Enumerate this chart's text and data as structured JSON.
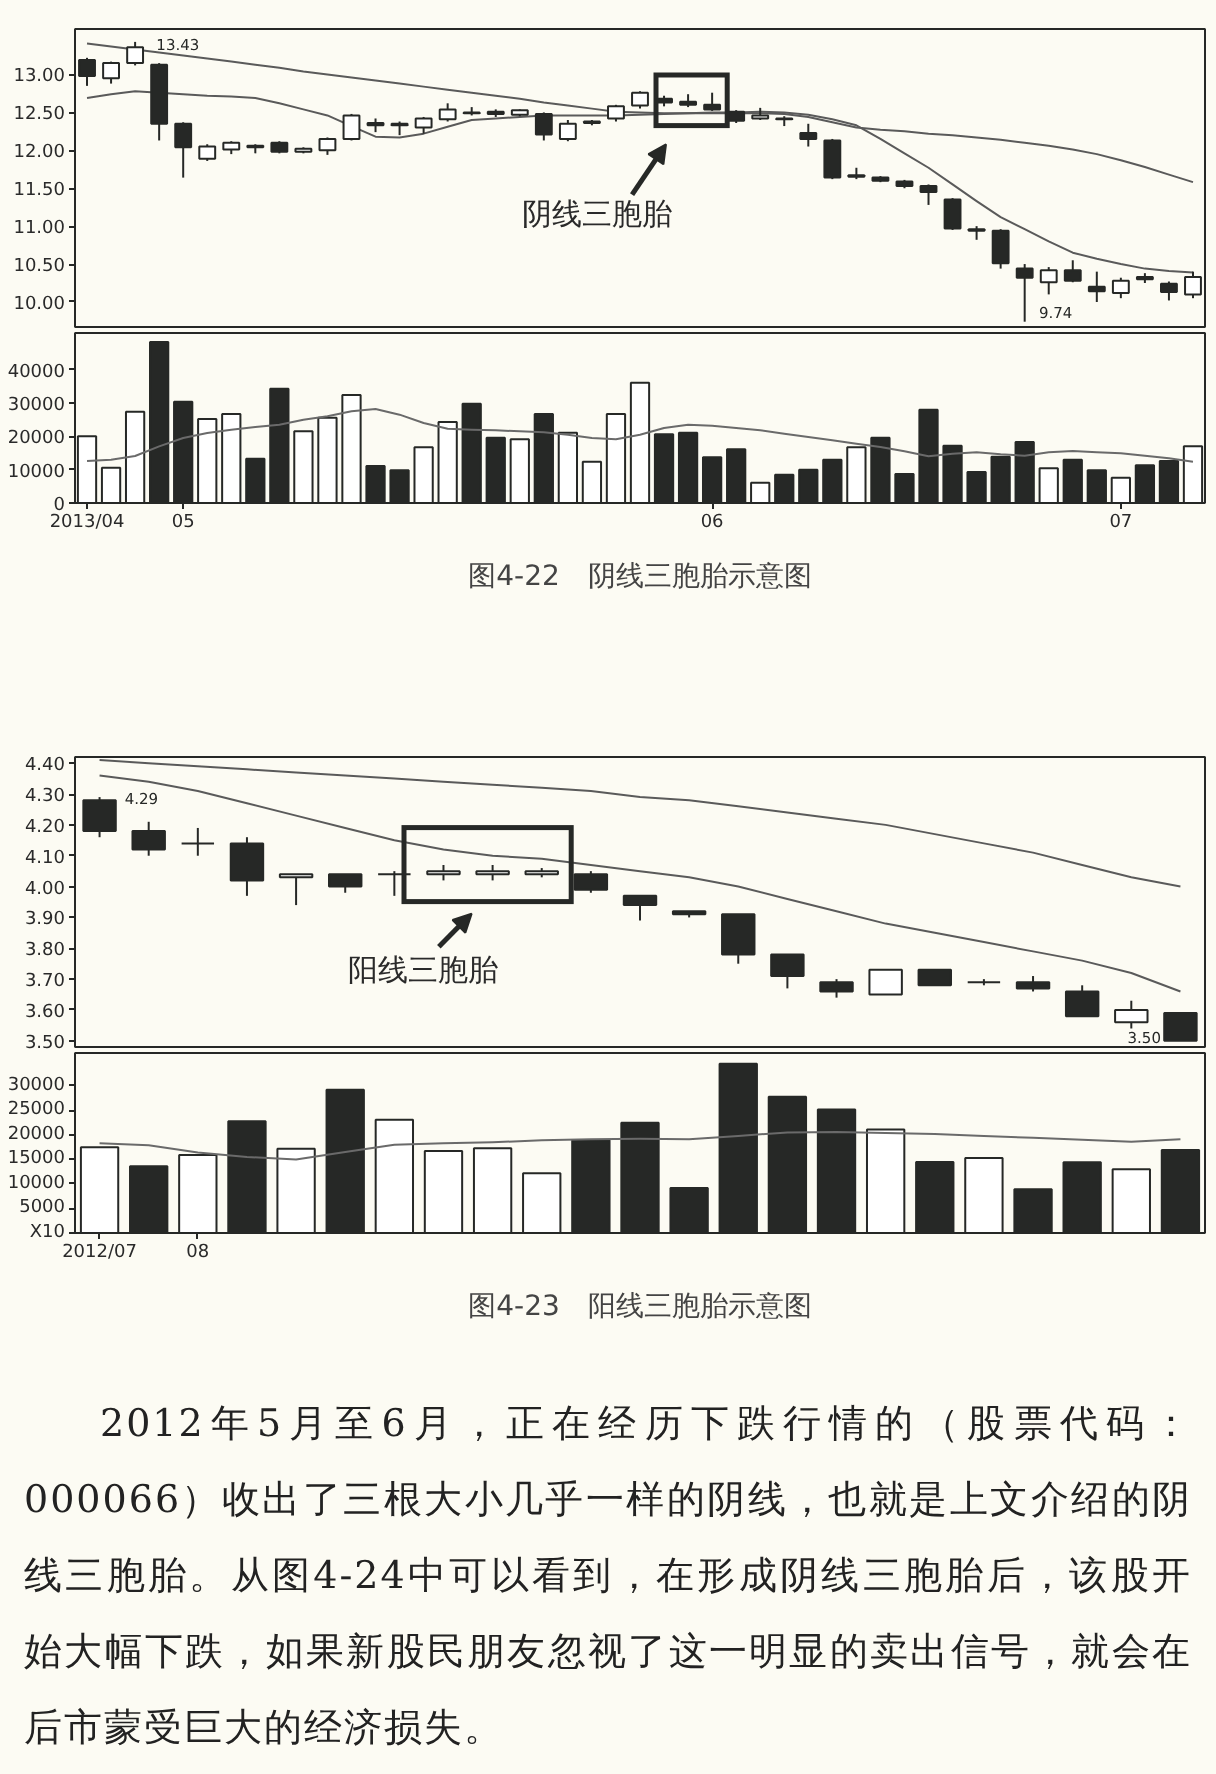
{
  "chart_data": [
    {
      "type": "candlestick",
      "color": "#262826",
      "categories": [
        "2013/04",
        null,
        null,
        null,
        "05",
        null,
        null,
        null,
        null,
        null,
        null,
        null,
        null,
        null,
        null,
        null,
        null,
        null,
        null,
        null,
        null,
        null,
        null,
        null,
        null,
        null,
        "06",
        null,
        null,
        null,
        null,
        null,
        null,
        null,
        null,
        null,
        null,
        null,
        null,
        null,
        null,
        null,
        null,
        "07",
        null,
        null,
        null
      ],
      "ohlc": [
        [
          13.19,
          13.22,
          12.85,
          12.98
        ],
        [
          12.95,
          13.17,
          12.88,
          13.15
        ],
        [
          13.15,
          13.43,
          13.12,
          13.36
        ],
        [
          13.13,
          13.15,
          12.13,
          12.35
        ],
        [
          12.35,
          12.37,
          11.64,
          12.04
        ],
        [
          11.89,
          12.08,
          11.86,
          12.05
        ],
        [
          12.01,
          12.12,
          11.95,
          12.1
        ],
        [
          12.06,
          12.08,
          11.96,
          12.04
        ],
        [
          12.1,
          12.12,
          11.96,
          11.98
        ],
        [
          11.98,
          12.04,
          11.96,
          12.02
        ],
        [
          12.0,
          12.17,
          11.94,
          12.15
        ],
        [
          12.15,
          12.48,
          12.13,
          12.46
        ],
        [
          12.36,
          12.42,
          12.24,
          12.33
        ],
        [
          12.35,
          12.38,
          12.2,
          12.33
        ],
        [
          12.3,
          12.44,
          12.22,
          12.42
        ],
        [
          12.41,
          12.62,
          12.38,
          12.54
        ],
        [
          12.5,
          12.57,
          12.46,
          12.49
        ],
        [
          12.51,
          12.54,
          12.44,
          12.48
        ],
        [
          12.47,
          12.54,
          12.45,
          12.53
        ],
        [
          12.48,
          12.5,
          12.13,
          12.21
        ],
        [
          12.15,
          12.4,
          12.12,
          12.35
        ],
        [
          12.36,
          12.4,
          12.33,
          12.38
        ],
        [
          12.42,
          12.6,
          12.38,
          12.58
        ],
        [
          12.59,
          12.78,
          12.55,
          12.76
        ],
        [
          12.68,
          12.72,
          12.58,
          12.63
        ],
        [
          12.64,
          12.74,
          12.57,
          12.6
        ],
        [
          12.6,
          12.76,
          12.52,
          12.54
        ],
        [
          12.51,
          12.53,
          12.36,
          12.39
        ],
        [
          12.42,
          12.56,
          12.4,
          12.46
        ],
        [
          12.42,
          12.45,
          12.32,
          12.41
        ],
        [
          12.23,
          12.35,
          12.05,
          12.15
        ],
        [
          12.13,
          12.15,
          11.62,
          11.64
        ],
        [
          11.65,
          11.77,
          11.62,
          11.67
        ],
        [
          11.64,
          11.66,
          11.58,
          11.6
        ],
        [
          11.59,
          11.61,
          11.5,
          11.53
        ],
        [
          11.53,
          11.55,
          11.28,
          11.45
        ],
        [
          11.35,
          11.37,
          10.95,
          10.97
        ],
        [
          10.96,
          11.0,
          10.82,
          10.94
        ],
        [
          10.94,
          10.96,
          10.44,
          10.51
        ],
        [
          10.44,
          10.5,
          9.74,
          10.32
        ],
        [
          10.26,
          10.46,
          10.1,
          10.42
        ],
        [
          10.42,
          10.55,
          10.26,
          10.28
        ],
        [
          10.2,
          10.4,
          10.0,
          10.14
        ],
        [
          10.12,
          10.32,
          10.05,
          10.28
        ],
        [
          10.33,
          10.38,
          10.25,
          10.3
        ],
        [
          10.24,
          10.27,
          10.02,
          10.13
        ],
        [
          10.1,
          10.4,
          10.05,
          10.33
        ]
      ],
      "series": [
        {
          "type": "line",
          "color": "#5a5a5a",
          "values": [
            13.41,
            13.37,
            13.33,
            13.29,
            13.25,
            13.21,
            13.17,
            13.13,
            13.09,
            13.04,
            13.0,
            12.96,
            12.92,
            12.88,
            12.84,
            12.8,
            12.76,
            12.72,
            12.68,
            12.63,
            12.59,
            12.55,
            12.51,
            12.5,
            12.49,
            12.49,
            12.49,
            12.49,
            12.49,
            12.48,
            12.44,
            12.37,
            12.3,
            12.27,
            12.25,
            12.22,
            12.2,
            12.17,
            12.14,
            12.1,
            12.06,
            12.01,
            11.95,
            11.87,
            11.78,
            11.68,
            11.58
          ]
        },
        {
          "type": "line",
          "color": "#5a5a5a",
          "values": [
            12.69,
            12.74,
            12.78,
            12.76,
            12.74,
            12.72,
            12.71,
            12.69,
            12.62,
            12.54,
            12.46,
            12.32,
            12.18,
            12.17,
            12.22,
            12.31,
            12.4,
            12.42,
            12.44,
            12.46,
            12.46,
            12.46,
            12.46,
            12.47,
            12.48,
            12.49,
            12.5,
            12.5,
            12.51,
            12.5,
            12.47,
            12.41,
            12.33,
            12.15,
            11.96,
            11.77,
            11.55,
            11.33,
            11.12,
            10.96,
            10.8,
            10.65,
            10.57,
            10.5,
            10.44,
            10.41,
            10.39
          ]
        }
      ],
      "ylim": [
        9.67,
        13.6
      ],
      "yticks": [
        {
          "value": 10,
          "label": "10.00"
        },
        {
          "value": 10.5,
          "label": "10.50"
        },
        {
          "value": 11,
          "label": "11.00"
        },
        {
          "value": 11.5,
          "label": "11.50"
        },
        {
          "value": 12,
          "label": "12.00"
        },
        {
          "value": 12.5,
          "label": "12.50"
        },
        {
          "value": 13,
          "label": "13.00"
        }
      ],
      "tick_labels": "y",
      "annotations": [
        "13.43",
        "9.74",
        "阴线三胞胎"
      ]
    },
    {
      "type": "bar",
      "title": "图4-22　阴线三胞胎示意图",
      "categories": [
        "2013/04",
        null,
        null,
        null,
        "05",
        null,
        null,
        null,
        null,
        null,
        null,
        null,
        null,
        null,
        null,
        null,
        null,
        null,
        null,
        null,
        null,
        null,
        null,
        null,
        null,
        null,
        "06",
        null,
        null,
        null,
        null,
        null,
        null,
        null,
        null,
        null,
        null,
        null,
        null,
        null,
        null,
        null,
        null,
        "07",
        null,
        null,
        null
      ],
      "series": [
        {
          "type": "bar",
          "values": [
            20000,
            10600,
            27400,
            48300,
            30400,
            25200,
            26700,
            13300,
            34300,
            21500,
            25600,
            32400,
            11100,
            9800,
            16700,
            24300,
            29800,
            19600,
            19100,
            26700,
            21100,
            12400,
            26700,
            36100,
            20600,
            21100,
            13700,
            16100,
            6100,
            8500,
            10000,
            13000,
            16700,
            19600,
            8700,
            28000,
            17200,
            9300,
            13900,
            18300,
            10400,
            13000,
            9800,
            7600,
            11300,
            12600,
            17000
          ],
          "colors": [
            "#ffffff",
            "#ffffff",
            "#ffffff",
            "#262826",
            "#262826",
            "#ffffff",
            "#ffffff",
            "#262826",
            "#262826",
            "#ffffff",
            "#ffffff",
            "#ffffff",
            "#262826",
            "#262826",
            "#ffffff",
            "#ffffff",
            "#262826",
            "#262826",
            "#ffffff",
            "#262826",
            "#ffffff",
            "#ffffff",
            "#ffffff",
            "#ffffff",
            "#262826",
            "#262826",
            "#262826",
            "#262826",
            "#ffffff",
            "#262826",
            "#262826",
            "#262826",
            "#ffffff",
            "#262826",
            "#262826",
            "#262826",
            "#262826",
            "#262826",
            "#262826",
            "#262826",
            "#ffffff",
            "#262826",
            "#262826",
            "#ffffff",
            "#262826",
            "#262826",
            "#ffffff"
          ]
        },
        {
          "type": "line",
          "color": "#6a6a6a",
          "values": [
            12600,
            13000,
            14100,
            17000,
            19500,
            21000,
            22000,
            22800,
            23500,
            25000,
            26000,
            27500,
            28200,
            26500,
            24000,
            22300,
            22000,
            21800,
            21500,
            21200,
            20500,
            19500,
            19100,
            20500,
            22500,
            23500,
            23200,
            22500,
            21800,
            20800,
            19800,
            18800,
            17800,
            16800,
            15500,
            14000,
            14800,
            15200,
            14600,
            14200,
            15200,
            15600,
            15200,
            14900,
            14200,
            13400,
            12400
          ]
        }
      ],
      "ylim": [
        0,
        51000
      ],
      "yticks": [
        0,
        10000,
        20000,
        30000,
        40000
      ]
    },
    {
      "type": "candlestick",
      "color": "#262826",
      "categories": [
        "2012/07",
        null,
        "08",
        null,
        null,
        null,
        null,
        null,
        null,
        null,
        null,
        null,
        null,
        null,
        null,
        null,
        null,
        null,
        null,
        null,
        null,
        null,
        null
      ],
      "ohlc": [
        [
          4.28,
          4.29,
          4.16,
          4.18
        ],
        [
          4.18,
          4.21,
          4.1,
          4.12
        ],
        [
          4.14,
          4.19,
          4.1,
          4.14
        ],
        [
          4.14,
          4.16,
          3.97,
          4.02
        ],
        [
          4.03,
          4.04,
          3.94,
          4.04
        ],
        [
          4.04,
          4.04,
          3.98,
          4.0
        ],
        [
          4.04,
          4.05,
          3.97,
          4.04
        ],
        [
          4.04,
          4.07,
          4.02,
          4.05
        ],
        [
          4.04,
          4.07,
          4.02,
          4.05
        ],
        [
          4.04,
          4.06,
          4.03,
          4.05
        ],
        [
          4.04,
          4.05,
          3.98,
          3.99
        ],
        [
          3.97,
          3.97,
          3.89,
          3.94
        ],
        [
          3.92,
          3.92,
          3.9,
          3.91
        ],
        [
          3.91,
          3.91,
          3.75,
          3.78
        ],
        [
          3.78,
          3.78,
          3.67,
          3.71
        ],
        [
          3.69,
          3.7,
          3.64,
          3.66
        ],
        [
          3.65,
          3.73,
          3.65,
          3.73
        ],
        [
          3.73,
          3.73,
          3.68,
          3.68
        ],
        [
          3.69,
          3.7,
          3.68,
          3.69
        ],
        [
          3.69,
          3.71,
          3.66,
          3.67
        ],
        [
          3.66,
          3.68,
          3.58,
          3.58
        ],
        [
          3.56,
          3.63,
          3.54,
          3.6
        ],
        [
          3.59,
          3.59,
          3.5,
          3.5
        ]
      ],
      "series": [
        {
          "type": "line",
          "color": "#5a5a5a",
          "values": [
            4.41,
            4.4,
            4.39,
            4.38,
            4.37,
            4.36,
            4.35,
            4.34,
            4.33,
            4.32,
            4.31,
            4.29,
            4.28,
            4.26,
            4.24,
            4.22,
            4.2,
            4.17,
            4.14,
            4.11,
            4.07,
            4.03,
            4.0
          ]
        },
        {
          "type": "line",
          "color": "#5a5a5a",
          "values": [
            4.36,
            4.34,
            4.31,
            4.27,
            4.23,
            4.19,
            4.15,
            4.12,
            4.1,
            4.09,
            4.07,
            4.05,
            4.03,
            4.0,
            3.96,
            3.92,
            3.88,
            3.85,
            3.82,
            3.79,
            3.76,
            3.72,
            3.66
          ]
        }
      ],
      "ylim": [
        3.48,
        4.42
      ],
      "yticks": [
        {
          "value": 3.5,
          "label": "3.50"
        },
        {
          "value": 3.6,
          "label": "3.60"
        },
        {
          "value": 3.7,
          "label": "3.70"
        },
        {
          "value": 3.8,
          "label": "3.80"
        },
        {
          "value": 3.9,
          "label": "3.90"
        },
        {
          "value": 4.0,
          "label": "4.00"
        },
        {
          "value": 4.1,
          "label": "4.10"
        },
        {
          "value": 4.2,
          "label": "4.20"
        },
        {
          "value": 4.3,
          "label": "4.30"
        },
        {
          "value": 4.4,
          "label": "4.40"
        }
      ],
      "tick_labels": "y",
      "annotations": [
        "4.29",
        "3.50",
        "阳线三胞胎"
      ]
    },
    {
      "type": "bar",
      "title": "图4-23　阳线三胞胎示意图",
      "categories": [
        "2012/07",
        null,
        "08",
        null,
        null,
        null,
        null,
        null,
        null,
        null,
        null,
        null,
        null,
        null,
        null,
        null,
        null,
        null,
        null,
        null,
        null,
        null,
        null
      ],
      "series": [
        {
          "type": "bar",
          "values": [
            17500,
            13600,
            15900,
            22800,
            17200,
            29200,
            23100,
            16700,
            17300,
            12200,
            18900,
            22500,
            9200,
            34500,
            27800,
            25200,
            21100,
            14500,
            15300,
            8900,
            14400,
            13000,
            16900
          ],
          "colors": [
            "#ffffff",
            "#262826",
            "#ffffff",
            "#262826",
            "#ffffff",
            "#262826",
            "#ffffff",
            "#ffffff",
            "#ffffff",
            "#ffffff",
            "#262826",
            "#262826",
            "#262826",
            "#262826",
            "#262826",
            "#262826",
            "#ffffff",
            "#262826",
            "#ffffff",
            "#262826",
            "#262826",
            "#ffffff",
            "#262826"
          ]
        },
        {
          "type": "line",
          "color": "#6a6a6a",
          "values": [
            18300,
            17900,
            16400,
            15500,
            15000,
            16500,
            18000,
            18300,
            18500,
            18900,
            19100,
            19200,
            19100,
            19800,
            20500,
            20600,
            20400,
            20200,
            19800,
            19400,
            19000,
            18600,
            19100
          ]
        }
      ],
      "ylim": [
        0,
        36700
      ],
      "yticks": [
        {
          "value": 0,
          "label": "X10"
        },
        5000,
        10000,
        15000,
        20000,
        25000,
        30000
      ]
    },
    {
      "type": "other",
      "annotations": [
        "2012年5月至6月，正在经历下跌行情的（股票代码：000066）收出了三根大小几乎一样的阴线，也就是上文介绍的阴线三胞胎。从图4-24中可以看到，在形成阴线三胞胎后，该股开始大幅下跌，如果新股民朋友忽视了这一明显的卖出信号，就会在后市蒙受巨大的经济损失。"
      ]
    }
  ]
}
